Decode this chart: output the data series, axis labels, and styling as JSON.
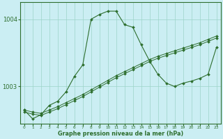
{
  "title": "Graphe pression niveau de la mer (hPa)",
  "background_color": "#cbeef3",
  "grid_color": "#9dd4c8",
  "line_color": "#2d6e2d",
  "x_ticks": [
    0,
    1,
    2,
    3,
    4,
    5,
    6,
    7,
    8,
    9,
    10,
    11,
    12,
    13,
    14,
    15,
    16,
    17,
    18,
    19,
    20,
    21,
    22,
    23
  ],
  "ylim": [
    1002.45,
    1004.25
  ],
  "yticks": [
    1003,
    1004
  ],
  "line_peak": [
    1002.65,
    1002.52,
    1002.58,
    1002.72,
    1002.78,
    1002.92,
    1003.15,
    1003.32,
    1004.0,
    1004.07,
    1004.12,
    1004.12,
    1003.92,
    1003.88,
    1003.62,
    1003.38,
    1003.18,
    1003.05,
    1003.0,
    1003.05,
    1003.08,
    1003.12,
    1003.18,
    1003.58
  ],
  "line_smooth1": [
    1002.65,
    1002.62,
    1002.6,
    1002.65,
    1002.7,
    1002.76,
    1002.82,
    1002.88,
    1002.95,
    1003.02,
    1003.09,
    1003.16,
    1003.22,
    1003.28,
    1003.34,
    1003.4,
    1003.45,
    1003.49,
    1003.53,
    1003.57,
    1003.61,
    1003.65,
    1003.7,
    1003.75
  ],
  "line_smooth2": [
    1002.62,
    1002.59,
    1002.57,
    1002.62,
    1002.67,
    1002.73,
    1002.79,
    1002.85,
    1002.92,
    1002.99,
    1003.06,
    1003.13,
    1003.19,
    1003.25,
    1003.31,
    1003.37,
    1003.42,
    1003.46,
    1003.5,
    1003.54,
    1003.58,
    1003.62,
    1003.67,
    1003.72
  ]
}
